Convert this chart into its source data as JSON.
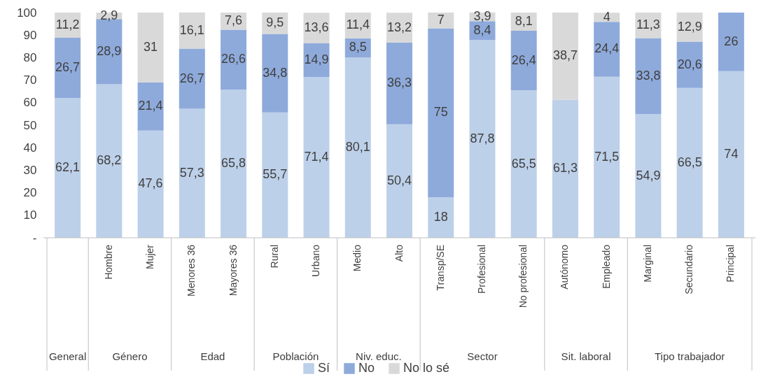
{
  "chart_data": {
    "type": "bar",
    "stacked": true,
    "legend": "bottom",
    "grid": false,
    "categories": [
      null,
      "Hombre",
      "Mujer",
      "Menores 36",
      "Mayores 36",
      "Rural",
      "Urbano",
      "Medio",
      "Alto",
      "Transp/SE",
      "Profesional",
      "No profesional",
      "Autónomo",
      "Empleado",
      "Marginal",
      "Secundario",
      "Principal"
    ],
    "series": [
      {
        "name": "Sí",
        "color": "#bdd0e9",
        "values": [
          62.1,
          68.2,
          47.6,
          57.3,
          65.8,
          55.7,
          71.4,
          80.1,
          50.4,
          18,
          87.8,
          65.5,
          61.3,
          71.5,
          54.9,
          66.5,
          74
        ],
        "value_labels": [
          "62,1",
          "68,2",
          "47,6",
          "57,3",
          "65,8",
          "55,7",
          "71,4",
          "80,1",
          "50,4",
          "18",
          "87,8",
          "65,5",
          "61,3",
          "71,5",
          "54,9",
          "66,5",
          "74"
        ]
      },
      {
        "name": "No",
        "color": "#8eaadb",
        "values": [
          26.7,
          28.9,
          21.4,
          26.7,
          26.6,
          34.8,
          14.9,
          8.5,
          36.3,
          75,
          8.4,
          26.4,
          null,
          24.4,
          33.8,
          20.6,
          26
        ],
        "value_labels": [
          "26,7",
          "28,9",
          "21,4",
          "26,7",
          "26,6",
          "34,8",
          "14,9",
          "8,5",
          "36,3",
          "75",
          "8,4",
          "26,4",
          null,
          "24,4",
          "33,8",
          "20,6",
          "26"
        ]
      },
      {
        "name": "No lo sé",
        "color": "#d9d9d9",
        "values": [
          11.2,
          2.9,
          31,
          16.1,
          7.6,
          9.5,
          13.6,
          11.4,
          13.2,
          7,
          3.9,
          8.1,
          38.7,
          4,
          11.3,
          12.9,
          null
        ],
        "value_labels": [
          "11,2",
          "2,9",
          "31",
          "16,1",
          "7,6",
          "9,5",
          "13,6",
          "11,4",
          "13,2",
          "7",
          "3,9",
          "8,1",
          "38,7",
          "4",
          "11,3",
          "12,9",
          null
        ]
      }
    ],
    "ylim": [
      0,
      100
    ],
    "yticks": [
      {
        "value": 0,
        "label": "-"
      },
      10,
      20,
      30,
      40,
      50,
      60,
      70,
      80,
      90,
      100
    ],
    "annotations": [
      "General",
      "Género",
      "Edad",
      "Población",
      "Niv. educ.",
      "Sector",
      "Sit. laboral",
      "Tipo trabajador"
    ]
  }
}
